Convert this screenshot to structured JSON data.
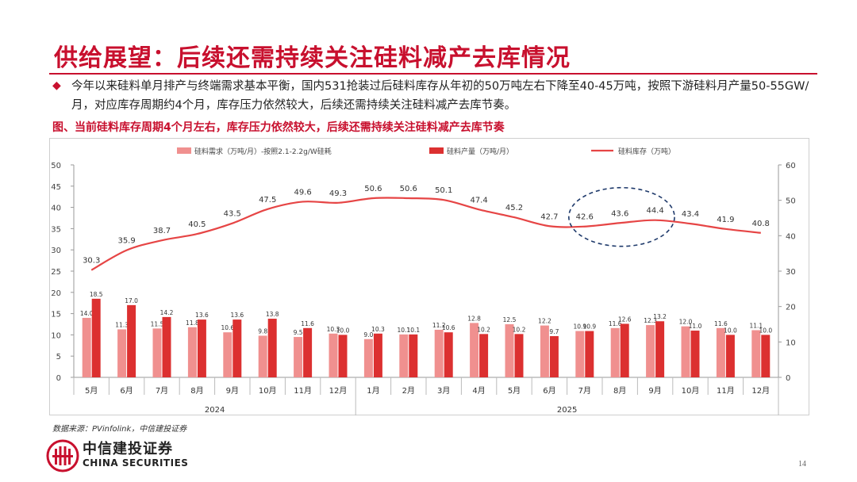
{
  "slide": {
    "title": "供给展望：后续还需持续关注硅料减产去库情况",
    "bullet": "今年以来硅料单月排产与终端需求基本平衡，国内531抢装过后硅料库存从年初的50万吨左右下降至40-45万吨，按照下游硅料月产量50-55GW/月，对应库存周期约4个月，库存压力依然较大，后续还需持续关注硅料减产去库节奏。",
    "figure_title": "图、当前硅料库存周期4个月左右，库存压力依然较大，后续还需持续关注硅料减产去库节奏",
    "source": "数据来源：PVinfolink，中信建投证券",
    "logo_cn": "中信建投证券",
    "logo_en": "CHINA SECURITIES",
    "page_number": "14"
  },
  "colors": {
    "brand_red": "#c8102e",
    "demand_bar": "#f0908f",
    "production_bar": "#dc3030",
    "inventory_line": "#e64545",
    "highlight_ellipse": "#1f3a6b"
  },
  "chart_data": {
    "type": "bar",
    "title": "",
    "categories": [
      "5月",
      "6月",
      "7月",
      "8月",
      "9月",
      "10月",
      "11月",
      "12月",
      "1月",
      "2月",
      "3月",
      "4月",
      "5月",
      "6月",
      "7月",
      "8月",
      "9月",
      "10月",
      "11月",
      "12月"
    ],
    "year_groups": [
      {
        "label": "2024",
        "start": 0,
        "end": 7
      },
      {
        "label": "2025",
        "start": 8,
        "end": 19
      }
    ],
    "left_axis": {
      "min": 0,
      "max": 50,
      "ticks": [
        "0",
        "5",
        "10",
        "15",
        "20",
        "25",
        "30",
        "35",
        "40",
        "45",
        "50"
      ]
    },
    "right_axis": {
      "min": 0,
      "max": 60,
      "ticks": [
        "0",
        "10",
        "20",
        "30",
        "40",
        "50",
        "60"
      ]
    },
    "series": [
      {
        "name": "硅料需求（万吨/月）-按照2.1-2.2g/W硅耗",
        "kind": "bar",
        "axis": "left",
        "values": [
          14.0,
          11.3,
          11.5,
          11.8,
          10.6,
          9.8,
          9.5,
          10.3,
          9.0,
          10.1,
          11.2,
          12.8,
          12.5,
          12.2,
          10.9,
          11.6,
          12.3,
          12.0,
          11.6,
          11.1
        ],
        "labels": [
          "14.0",
          "11.3",
          "11.5",
          "11.8",
          "10.6",
          "9.8",
          "9.5",
          "10.3",
          "9.0",
          "10.1",
          "11.2",
          "12.8",
          "12.5",
          "12.2",
          "10.9",
          "11.6",
          "12.3",
          "12.0",
          "11.6",
          "11.1"
        ]
      },
      {
        "name": "硅料产量（万吨/月）",
        "kind": "bar",
        "axis": "left",
        "values": [
          18.5,
          17.0,
          14.2,
          13.6,
          13.6,
          13.8,
          11.6,
          10.0,
          10.3,
          10.1,
          10.6,
          10.2,
          10.2,
          9.7,
          10.9,
          12.6,
          13.2,
          11.0,
          10.0,
          10.0
        ],
        "labels": [
          "18.5",
          "17.0",
          "14.2",
          "13.6",
          "13.6",
          "13.8",
          "11.6",
          "10.0",
          "10.3",
          "10.1",
          "10.6",
          "10.2",
          "10.2",
          "9.7",
          "10.9",
          "12.6",
          "13.2",
          "11.0",
          "10.0",
          "10.0"
        ]
      },
      {
        "name": "硅料库存（万吨）",
        "kind": "line",
        "axis": "right",
        "values": [
          30.3,
          35.9,
          38.7,
          40.5,
          43.5,
          47.5,
          49.6,
          49.3,
          50.6,
          50.6,
          50.1,
          47.4,
          45.2,
          42.7,
          42.6,
          43.6,
          44.4,
          43.4,
          41.9,
          40.8
        ],
        "labels": [
          "30.3",
          "35.9",
          "38.7",
          "40.5",
          "43.5",
          "47.5",
          "49.6",
          "49.3",
          "50.6",
          "50.6",
          "50.1",
          "47.4",
          "45.2",
          "42.7",
          "42.6",
          "43.6",
          "44.4",
          "43.4",
          "41.9",
          "40.8"
        ]
      }
    ],
    "highlight": {
      "shape": "dashed-ellipse",
      "from_index": 14,
      "to_index": 16
    },
    "legend_position": "top"
  }
}
